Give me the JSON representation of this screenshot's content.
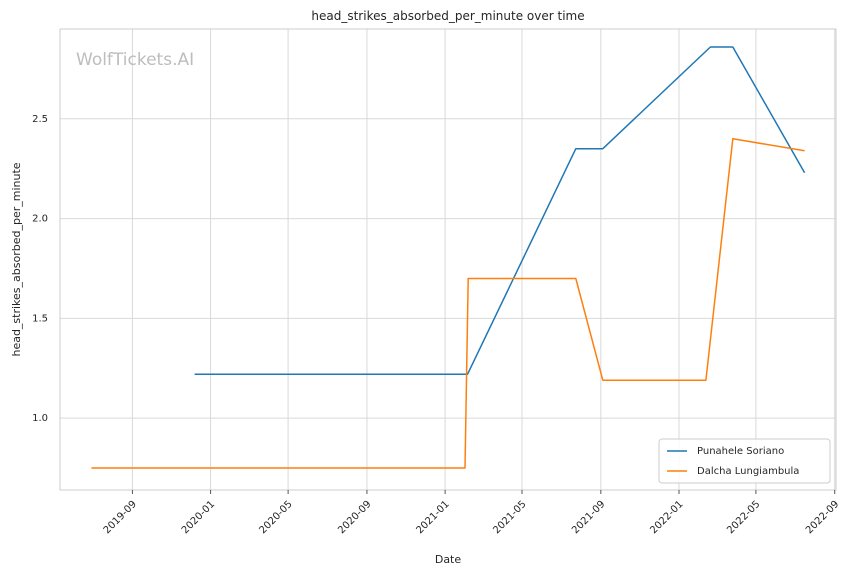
{
  "chart_data": {
    "type": "line",
    "title": "head_strikes_absorbed_per_minute over time",
    "xlabel": "Date",
    "ylabel": "head_strikes_absorbed_per_minute",
    "watermark": "WolfTickets.AI",
    "grid": true,
    "legend_position": "bottom-right",
    "xlim": [
      "2019-05-11",
      "2022-09-03"
    ],
    "ylim": [
      0.64,
      2.95
    ],
    "x_ticks": [
      "2019-09",
      "2020-01",
      "2020-05",
      "2020-09",
      "2021-01",
      "2021-05",
      "2021-09",
      "2022-01",
      "2022-05",
      "2022-09"
    ],
    "y_ticks": [
      "1.0",
      "1.5",
      "2.0",
      "2.5"
    ],
    "series": [
      {
        "name": "Punahele Soriano",
        "color": "#1f77b4",
        "points": [
          {
            "x": "2019-12-07",
            "y": 1.22
          },
          {
            "x": "2021-02-05",
            "y": 1.22
          },
          {
            "x": "2021-07-24",
            "y": 2.35
          },
          {
            "x": "2021-09-04",
            "y": 2.35
          },
          {
            "x": "2022-02-19",
            "y": 2.86
          },
          {
            "x": "2022-03-26",
            "y": 2.86
          },
          {
            "x": "2022-07-16",
            "y": 2.23
          }
        ]
      },
      {
        "name": "Dalcha Lungiambula",
        "color": "#ff7f0e",
        "points": [
          {
            "x": "2019-06-29",
            "y": 0.75
          },
          {
            "x": "2021-02-01",
            "y": 0.75
          },
          {
            "x": "2021-02-06",
            "y": 1.7
          },
          {
            "x": "2021-07-24",
            "y": 1.7
          },
          {
            "x": "2021-09-04",
            "y": 1.19
          },
          {
            "x": "2022-02-12",
            "y": 1.19
          },
          {
            "x": "2022-03-26",
            "y": 2.4
          },
          {
            "x": "2022-07-16",
            "y": 2.34
          }
        ]
      }
    ]
  }
}
